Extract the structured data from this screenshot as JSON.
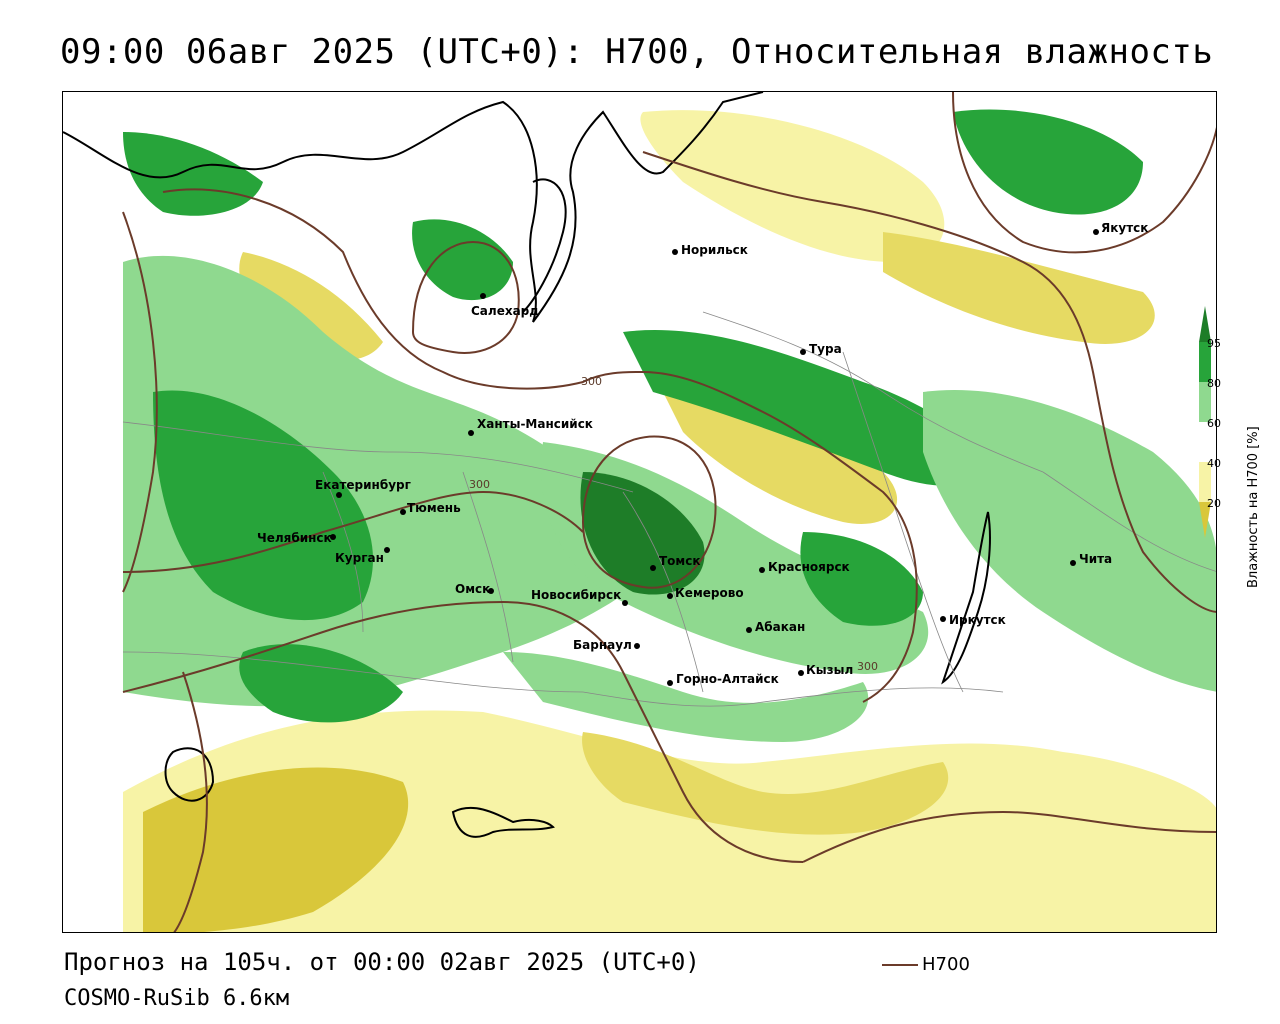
{
  "header": {
    "title": "09:00 06авг 2025 (UTC+0): H700, Относительная влажность"
  },
  "footer": {
    "forecast": "Прогноз на 105ч. от 00:00 02авг 2025 (UTC+0)",
    "model": "COSMO-RuSib 6.6км",
    "contour_key": "H700"
  },
  "legend": {
    "title": "Влажность на H700 [%]",
    "ticks": [
      "95",
      "80",
      "60",
      "40",
      "20"
    ],
    "colors": {
      "95_plus": "#1e7d28",
      "80_95": "#27a43a",
      "60_80": "#8fd98f",
      "40_60": "#ffffff",
      "20_40": "#f7f3a6",
      "below_20": "#d9c73a"
    }
  },
  "contours": {
    "color": "#6b3b2a",
    "labels": [
      "300",
      "300",
      "300"
    ]
  },
  "cities": [
    {
      "name": "Норильск"
    },
    {
      "name": "Якутск"
    },
    {
      "name": "Салехард"
    },
    {
      "name": "Тура"
    },
    {
      "name": "Ханты-Мансийск"
    },
    {
      "name": "Екатеринбург"
    },
    {
      "name": "Тюмень"
    },
    {
      "name": "Челябинск"
    },
    {
      "name": "Курган"
    },
    {
      "name": "Омск"
    },
    {
      "name": "Новосибирск"
    },
    {
      "name": "Томск"
    },
    {
      "name": "Кемерово"
    },
    {
      "name": "Красноярск"
    },
    {
      "name": "Барнаул"
    },
    {
      "name": "Абакан"
    },
    {
      "name": "Горно-Алтайск"
    },
    {
      "name": "Кызыл"
    },
    {
      "name": "Иркутск"
    },
    {
      "name": "Чита"
    }
  ]
}
